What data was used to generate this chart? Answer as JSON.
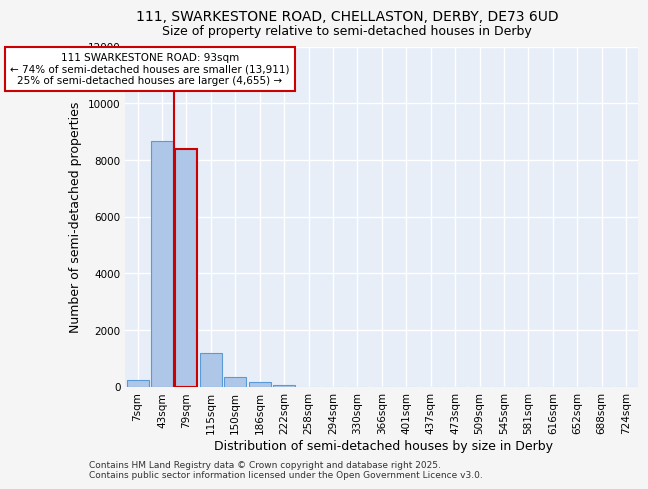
{
  "title_line1": "111, SWARKESTONE ROAD, CHELLASTON, DERBY, DE73 6UD",
  "title_line2": "Size of property relative to semi-detached houses in Derby",
  "xlabel": "Distribution of semi-detached houses by size in Derby",
  "ylabel": "Number of semi-detached properties",
  "footer_line1": "Contains HM Land Registry data © Crown copyright and database right 2025.",
  "footer_line2": "Contains public sector information licensed under the Open Government Licence v3.0.",
  "categories": [
    "7sqm",
    "43sqm",
    "79sqm",
    "115sqm",
    "150sqm",
    "186sqm",
    "222sqm",
    "258sqm",
    "294sqm",
    "330sqm",
    "366sqm",
    "401sqm",
    "437sqm",
    "473sqm",
    "509sqm",
    "545sqm",
    "581sqm",
    "616sqm",
    "652sqm",
    "688sqm",
    "724sqm"
  ],
  "values": [
    220,
    8680,
    8380,
    1200,
    330,
    150,
    70,
    0,
    0,
    0,
    0,
    0,
    0,
    0,
    0,
    0,
    0,
    0,
    0,
    0,
    0
  ],
  "bar_color": "#aec6e8",
  "bar_edge_color": "#5b9bd5",
  "highlight_bar_index": 2,
  "highlight_bar_edge_color": "#cc0000",
  "vline_color": "#cc0000",
  "vline_x": 1.5,
  "annotation_title": "111 SWARKESTONE ROAD: 93sqm",
  "annotation_line1": "← 74% of semi-detached houses are smaller (13,911)",
  "annotation_line2": "25% of semi-detached houses are larger (4,655) →",
  "annotation_box_color": "#ffffff",
  "annotation_box_edge_color": "#cc0000",
  "ylim": [
    0,
    12000
  ],
  "yticks": [
    0,
    2000,
    4000,
    6000,
    8000,
    10000,
    12000
  ],
  "background_color": "#f5f5f5",
  "plot_bg_color": "#e8eef8",
  "grid_color": "#ffffff",
  "title_fontsize": 10,
  "subtitle_fontsize": 9,
  "axis_label_fontsize": 9,
  "tick_fontsize": 7.5,
  "footer_fontsize": 6.5,
  "annotation_fontsize": 7.5
}
